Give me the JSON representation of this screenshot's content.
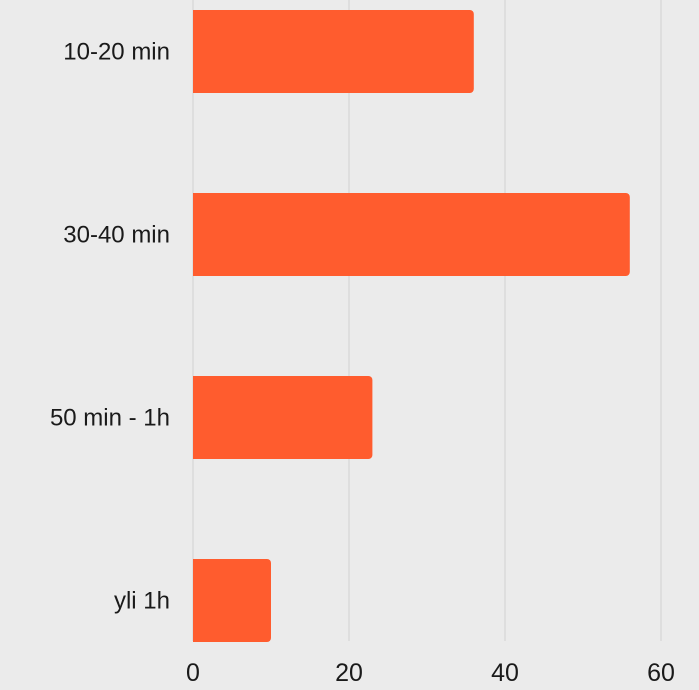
{
  "chart_data": {
    "type": "bar",
    "orientation": "horizontal",
    "categories": [
      "10-20 min",
      "30-40 min",
      "50 min - 1h",
      "yli 1h"
    ],
    "values": [
      36,
      56,
      23,
      10
    ],
    "title": "",
    "xlabel": "",
    "ylabel": "",
    "xlim": [
      0,
      60
    ],
    "xticks": [
      "0",
      "20",
      "40",
      "60"
    ],
    "grid": "vertical",
    "legend": "none"
  },
  "colors": {
    "background": "#ebebeb",
    "bar": "#ff5c2e",
    "grid": "#d2d2d2",
    "text": "#1a1a1a"
  }
}
